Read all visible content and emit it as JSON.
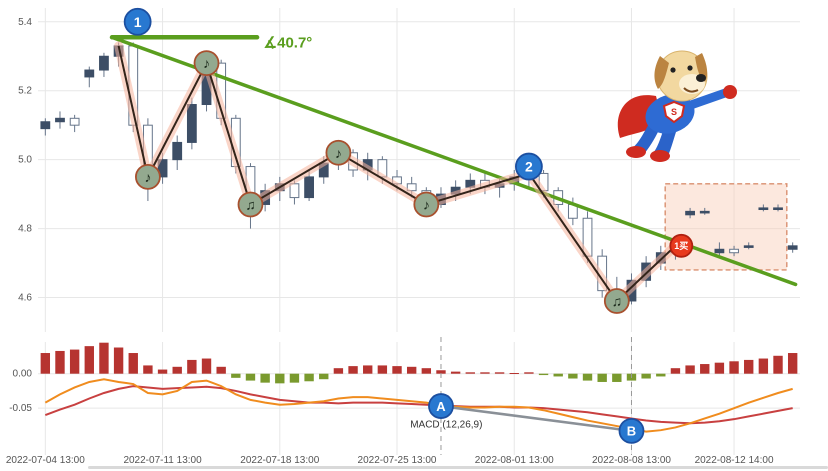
{
  "chart_data": {
    "type": "candlestick",
    "panels": [
      "price",
      "macd"
    ],
    "x_ticks": [
      {
        "label": "2022-07-04 13:00",
        "index": 0
      },
      {
        "label": "2022-07-11 13:00",
        "index": 8
      },
      {
        "label": "2022-07-18 13:00",
        "index": 16
      },
      {
        "label": "2022-07-25 13:00",
        "index": 24
      },
      {
        "label": "2022-08-01 13:00",
        "index": 32
      },
      {
        "label": "2022-08-08 13:00",
        "index": 40
      },
      {
        "label": "2022-08-12 14:00",
        "index": 47
      }
    ],
    "price_axis": {
      "min": 4.5,
      "max": 5.44,
      "ticks": [
        {
          "label": "5.4",
          "value": 5.4
        },
        {
          "label": "5.2",
          "value": 5.2
        },
        {
          "label": "5.0",
          "value": 5.0
        },
        {
          "label": "4.8",
          "value": 4.8
        },
        {
          "label": "4.6",
          "value": 4.6
        }
      ]
    },
    "macd_axis": {
      "min": -0.118,
      "max": 0.046,
      "ticks": [
        {
          "label": "0.00",
          "value": 0
        },
        {
          "label": "-0.05",
          "value": -0.05
        }
      ]
    },
    "candles": [
      [
        5.09,
        5.12,
        5.07,
        5.11
      ],
      [
        5.11,
        5.14,
        5.09,
        5.12
      ],
      [
        5.12,
        5.13,
        5.08,
        5.1
      ],
      [
        5.24,
        5.27,
        5.21,
        5.26
      ],
      [
        5.26,
        5.31,
        5.24,
        5.3
      ],
      [
        5.3,
        5.34,
        5.27,
        5.33
      ],
      [
        5.33,
        5.34,
        5.08,
        5.1
      ],
      [
        5.1,
        5.12,
        4.88,
        4.95
      ],
      [
        4.95,
        5.02,
        4.93,
        5.0
      ],
      [
        5.0,
        5.07,
        4.97,
        5.05
      ],
      [
        5.05,
        5.18,
        5.03,
        5.16
      ],
      [
        5.16,
        5.3,
        5.14,
        5.28
      ],
      [
        5.28,
        5.29,
        5.1,
        5.12
      ],
      [
        5.12,
        5.13,
        4.96,
        4.98
      ],
      [
        4.98,
        4.99,
        4.8,
        4.87
      ],
      [
        4.87,
        4.93,
        4.85,
        4.91
      ],
      [
        4.91,
        4.95,
        4.88,
        4.93
      ],
      [
        4.93,
        4.94,
        4.87,
        4.89
      ],
      [
        4.89,
        4.97,
        4.88,
        4.95
      ],
      [
        4.95,
        5.01,
        4.93,
        4.99
      ],
      [
        4.99,
        5.04,
        4.97,
        5.02
      ],
      [
        5.02,
        5.03,
        4.95,
        4.97
      ],
      [
        4.97,
        5.02,
        4.94,
        5.0
      ],
      [
        5.0,
        5.01,
        4.93,
        4.95
      ],
      [
        4.95,
        4.97,
        4.91,
        4.93
      ],
      [
        4.93,
        4.95,
        4.89,
        4.91
      ],
      [
        4.91,
        4.92,
        4.84,
        4.87
      ],
      [
        4.87,
        4.92,
        4.86,
        4.9
      ],
      [
        4.9,
        4.94,
        4.88,
        4.92
      ],
      [
        4.92,
        4.96,
        4.9,
        4.94
      ],
      [
        4.94,
        4.96,
        4.9,
        4.92
      ],
      [
        4.92,
        4.95,
        4.89,
        4.93
      ],
      [
        4.93,
        4.97,
        4.91,
        4.95
      ],
      [
        4.95,
        4.97,
        4.92,
        4.96
      ],
      [
        4.96,
        4.97,
        4.89,
        4.91
      ],
      [
        4.91,
        4.92,
        4.85,
        4.87
      ],
      [
        4.87,
        4.89,
        4.81,
        4.83
      ],
      [
        4.83,
        4.85,
        4.7,
        4.72
      ],
      [
        4.72,
        4.74,
        4.6,
        4.62
      ],
      [
        4.62,
        4.66,
        4.56,
        4.59
      ],
      [
        4.59,
        4.67,
        4.58,
        4.65
      ],
      [
        4.65,
        4.72,
        4.63,
        4.7
      ],
      [
        4.7,
        4.75,
        4.68,
        4.73
      ],
      [
        4.73,
        4.77,
        4.71,
        4.75
      ],
      [
        4.84,
        4.86,
        4.83,
        4.85
      ],
      [
        4.85,
        4.86,
        4.84,
        4.85
      ],
      [
        4.73,
        4.76,
        4.72,
        4.74
      ],
      [
        4.74,
        4.75,
        4.72,
        4.73
      ],
      [
        4.75,
        4.76,
        4.74,
        4.75
      ],
      [
        4.86,
        4.87,
        4.85,
        4.86
      ],
      [
        4.86,
        4.87,
        4.85,
        4.86
      ],
      [
        4.74,
        4.76,
        4.73,
        4.75
      ]
    ],
    "zigzag": [
      [
        5,
        5.33
      ],
      [
        7,
        4.95
      ],
      [
        11,
        5.28
      ],
      [
        14,
        4.87
      ],
      [
        20,
        5.02
      ],
      [
        26,
        4.87
      ],
      [
        33,
        4.96
      ],
      [
        39,
        4.59
      ],
      [
        43,
        4.75
      ]
    ],
    "trendline": {
      "start_index": 4.55,
      "start_price": 5.355,
      "end_index": 51.2,
      "end_price": 4.638
    },
    "baseline": {
      "start_index": 4.55,
      "end_index": 14.45,
      "price": 5.355
    },
    "angle_label": {
      "text": "∡40.7°",
      "index": 14.9,
      "price": 5.325
    },
    "note_markers": [
      {
        "index": 7,
        "price": 4.95,
        "glyph": "♪"
      },
      {
        "index": 11,
        "price": 5.28,
        "glyph": "♪"
      },
      {
        "index": 14,
        "price": 4.87,
        "glyph": "♫"
      },
      {
        "index": 20,
        "price": 5.02,
        "glyph": "♪"
      },
      {
        "index": 26,
        "price": 4.87,
        "glyph": "♪"
      },
      {
        "index": 39,
        "price": 4.59,
        "glyph": "♫"
      }
    ],
    "number_markers": [
      {
        "label": "1",
        "index": 6.3,
        "price": 5.4
      },
      {
        "label": "2",
        "index": 33,
        "price": 4.98
      }
    ],
    "letter_markers": [
      {
        "label": "A",
        "index": 27,
        "value": -0.047
      },
      {
        "label": "B",
        "index": 40,
        "value": -0.083
      }
    ],
    "buy_marker": {
      "label": "1买",
      "index": 43.4,
      "price": 4.75
    },
    "highlight_box": {
      "start_index": 42.3,
      "end_index": 50.6,
      "price_top": 4.93,
      "price_bottom": 4.68
    },
    "macd": {
      "hist": [
        0.03,
        0.033,
        0.035,
        0.04,
        0.045,
        0.038,
        0.03,
        0.012,
        0.006,
        0.01,
        0.02,
        0.022,
        0.01,
        -0.006,
        -0.01,
        -0.013,
        -0.014,
        -0.013,
        -0.011,
        -0.008,
        0.008,
        0.011,
        0.012,
        0.012,
        0.011,
        0.01,
        0.008,
        0.005,
        0.003,
        0.002,
        0.002,
        0.002,
        0.001,
        0.002,
        -0.002,
        -0.004,
        -0.007,
        -0.01,
        -0.012,
        -0.012,
        -0.01,
        -0.007,
        -0.004,
        0.008,
        0.012,
        0.014,
        0.016,
        0.018,
        0.02,
        0.022,
        0.026,
        0.03
      ],
      "dif": [
        -0.042,
        -0.03,
        -0.02,
        -0.012,
        -0.008,
        -0.012,
        -0.015,
        -0.028,
        -0.03,
        -0.025,
        -0.012,
        -0.01,
        -0.018,
        -0.03,
        -0.038,
        -0.042,
        -0.045,
        -0.044,
        -0.042,
        -0.04,
        -0.036,
        -0.034,
        -0.034,
        -0.036,
        -0.038,
        -0.04,
        -0.042,
        -0.046,
        -0.048,
        -0.049,
        -0.049,
        -0.048,
        -0.048,
        -0.049,
        -0.053,
        -0.058,
        -0.063,
        -0.068,
        -0.072,
        -0.076,
        -0.08,
        -0.084,
        -0.082,
        -0.078,
        -0.072,
        -0.065,
        -0.058,
        -0.05,
        -0.042,
        -0.035,
        -0.028,
        -0.022
      ],
      "dea": [
        -0.06,
        -0.052,
        -0.045,
        -0.036,
        -0.028,
        -0.022,
        -0.018,
        -0.02,
        -0.022,
        -0.021,
        -0.02,
        -0.019,
        -0.021,
        -0.025,
        -0.03,
        -0.034,
        -0.038,
        -0.04,
        -0.042,
        -0.042,
        -0.043,
        -0.042,
        -0.042,
        -0.042,
        -0.043,
        -0.044,
        -0.045,
        -0.046,
        -0.047,
        -0.048,
        -0.048,
        -0.048,
        -0.049,
        -0.049,
        -0.05,
        -0.052,
        -0.054,
        -0.056,
        -0.059,
        -0.062,
        -0.065,
        -0.068,
        -0.07,
        -0.071,
        -0.072,
        -0.071,
        -0.069,
        -0.066,
        -0.062,
        -0.058,
        -0.054,
        -0.05
      ]
    },
    "macd_label": {
      "text": "MACD (12,26,9)",
      "index": 24.9,
      "value": -0.078
    },
    "colors": {
      "background": "#ffffff",
      "grid": "#e7e7e7",
      "axis_text": "#555555",
      "candle_up_fill": "#3d4e66",
      "candle_down_border": "#66758a",
      "wick": "#66758a",
      "trendline": "#5a9e1e",
      "zigzag": "#33241a",
      "zigzag_glow": "#f5b39b",
      "macd_positive": "#b63430",
      "macd_negative": "#7a9a2e",
      "dif_line": "#f08c1e",
      "dea_line": "#c84040",
      "marker_blue_fill": "#2878d0",
      "marker_blue_border": "#1c4fa0",
      "note_fill": "#93a98f",
      "note_border": "#a8502e",
      "note_glyph": "#1c2a1c",
      "buy_fill": "#e8391d",
      "buy_border": "#b02010",
      "box_fill": "#f8cbb5",
      "box_border": "#d98f6f",
      "dashed_line": "#999999",
      "connector": "#8a9097"
    },
    "mascot": "superdog-flying-mascot"
  }
}
